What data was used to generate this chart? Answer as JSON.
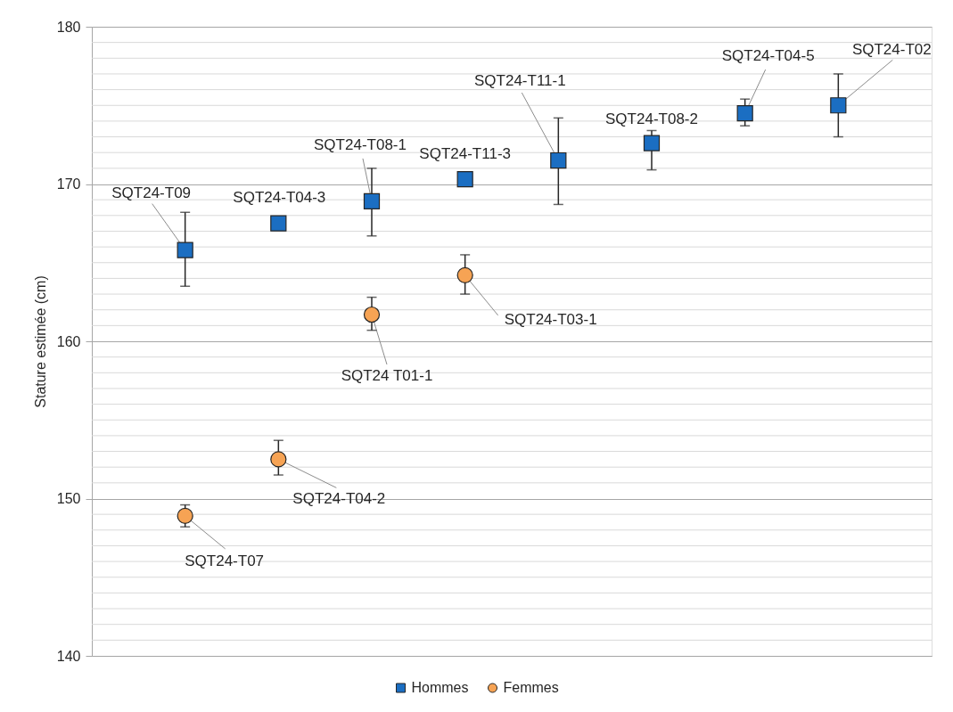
{
  "chart_data": {
    "type": "scatter",
    "ylabel": "Stature estimée (cm)",
    "categories": [
      null,
      null,
      null,
      null,
      null,
      null,
      null,
      null
    ],
    "series": [
      {
        "name": "Hommes",
        "color": "#1b6ec2",
        "marker": "square",
        "values": [
          165.8,
          167.5,
          168.9,
          170.3,
          171.5,
          172.6,
          174.5,
          175.0
        ],
        "errors": [
          [
            163.5,
            168.2
          ],
          null,
          [
            166.7,
            171.0
          ],
          null,
          [
            168.7,
            174.2
          ],
          [
            170.9,
            173.4
          ],
          [
            173.7,
            175.4
          ],
          [
            173.0,
            177.0
          ]
        ],
        "value_labels": [
          "SQT24-T09",
          "SQT24-T04-3",
          "SQT24-T08-1",
          "SQT24-T11-3",
          "SQT24-T11-1",
          "SQT24-T08-2",
          "SQT24-T04-5",
          "SQT24-T02"
        ]
      },
      {
        "name": "Femmes",
        "color": "#f6a354",
        "marker": "circle",
        "values": [
          148.9,
          152.5,
          161.7,
          164.2,
          null,
          null,
          null,
          null
        ],
        "errors": [
          [
            148.2,
            149.6
          ],
          [
            151.5,
            153.7
          ],
          [
            160.7,
            162.8
          ],
          [
            163.0,
            165.5
          ],
          null,
          null,
          null,
          null
        ],
        "value_labels": [
          "SQT24-T07",
          "SQT24-T04-2",
          "SQT24 T01-1",
          "SQT24-T03-1",
          null,
          null,
          null,
          null
        ]
      }
    ],
    "ylim": [
      140,
      180
    ],
    "yticks": [
      140,
      {
        "value": 141,
        "label": null
      },
      {
        "value": 142,
        "label": null
      },
      {
        "value": 143,
        "label": null
      },
      {
        "value": 144,
        "label": null
      },
      {
        "value": 145,
        "label": null
      },
      {
        "value": 146,
        "label": null
      },
      {
        "value": 147,
        "label": null
      },
      {
        "value": 148,
        "label": null
      },
      {
        "value": 149,
        "label": null
      },
      150,
      {
        "value": 151,
        "label": null
      },
      {
        "value": 152,
        "label": null
      },
      {
        "value": 153,
        "label": null
      },
      {
        "value": 154,
        "label": null
      },
      {
        "value": 155,
        "label": null
      },
      {
        "value": 156,
        "label": null
      },
      {
        "value": 157,
        "label": null
      },
      {
        "value": 158,
        "label": null
      },
      {
        "value": 159,
        "label": null
      },
      160,
      {
        "value": 161,
        "label": null
      },
      {
        "value": 162,
        "label": null
      },
      {
        "value": 163,
        "label": null
      },
      {
        "value": 164,
        "label": null
      },
      {
        "value": 165,
        "label": null
      },
      {
        "value": 166,
        "label": null
      },
      {
        "value": 167,
        "label": null
      },
      {
        "value": 168,
        "label": null
      },
      {
        "value": 169,
        "label": null
      },
      170,
      {
        "value": 171,
        "label": null
      },
      {
        "value": 172,
        "label": null
      },
      {
        "value": 173,
        "label": null
      },
      {
        "value": 174,
        "label": null
      },
      {
        "value": 175,
        "label": null
      },
      {
        "value": 176,
        "label": null
      },
      {
        "value": 177,
        "label": null
      },
      {
        "value": 178,
        "label": null
      },
      {
        "value": 179,
        "label": null
      },
      180
    ],
    "grid": "y",
    "legend": "bottom",
    "tick_labels": "y"
  }
}
